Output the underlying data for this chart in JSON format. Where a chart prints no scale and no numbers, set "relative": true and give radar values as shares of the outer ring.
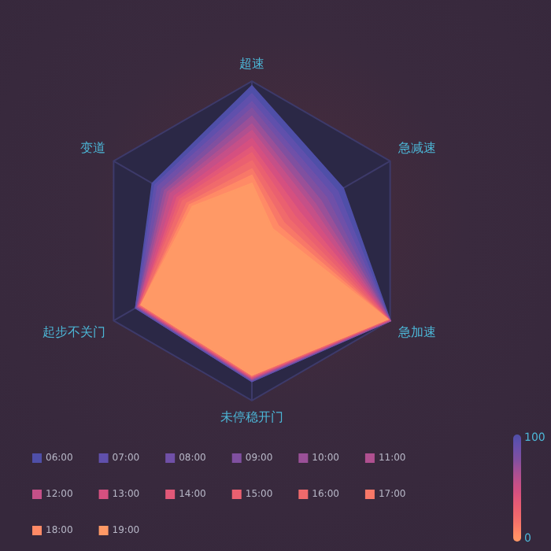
{
  "chart_data": {
    "type": "radar",
    "categories": [
      "超速",
      "急减速",
      "急加速",
      "未停稳开门",
      "起步不关门",
      "变道"
    ],
    "relative": true,
    "grid": true,
    "legend": "bottom",
    "annotations": [
      "100",
      "0"
    ],
    "series": [
      {
        "name": "06:00",
        "color": "#4f4fa8",
        "values": [
          0.97,
          0.66,
          1,
          0.88,
          0.84,
          0.72
        ]
      },
      {
        "name": "07:00",
        "color": "#6050ac",
        "values": [
          0.92,
          0.62,
          1,
          0.88,
          0.84,
          0.7
        ]
      },
      {
        "name": "08:00",
        "color": "#7050a8",
        "values": [
          0.87,
          0.58,
          1,
          0.87,
          0.83,
          0.68
        ]
      },
      {
        "name": "09:00",
        "color": "#8050a0",
        "values": [
          0.83,
          0.54,
          1,
          0.87,
          0.83,
          0.65
        ]
      },
      {
        "name": "10:00",
        "color": "#9a5098",
        "values": [
          0.78,
          0.5,
          1,
          0.87,
          0.83,
          0.63
        ]
      },
      {
        "name": "11:00",
        "color": "#b05090",
        "values": [
          0.73,
          0.46,
          1,
          0.86,
          0.82,
          0.61
        ]
      },
      {
        "name": "12:00",
        "color": "#c55088",
        "values": [
          0.69,
          0.43,
          0.99,
          0.86,
          0.82,
          0.59
        ]
      },
      {
        "name": "13:00",
        "color": "#d55080",
        "values": [
          0.64,
          0.39,
          0.99,
          0.86,
          0.82,
          0.56
        ]
      },
      {
        "name": "14:00",
        "color": "#e25878",
        "values": [
          0.59,
          0.35,
          0.99,
          0.85,
          0.81,
          0.54
        ]
      },
      {
        "name": "15:00",
        "color": "#ea6070",
        "values": [
          0.55,
          0.31,
          0.99,
          0.85,
          0.81,
          0.52
        ]
      },
      {
        "name": "16:00",
        "color": "#f06a6c",
        "values": [
          0.5,
          0.27,
          0.98,
          0.85,
          0.81,
          0.5
        ]
      },
      {
        "name": "17:00",
        "color": "#f87868",
        "values": [
          0.45,
          0.23,
          0.98,
          0.84,
          0.8,
          0.47
        ]
      },
      {
        "name": "18:00",
        "color": "#ff8a66",
        "values": [
          0.41,
          0.19,
          0.98,
          0.84,
          0.8,
          0.45
        ]
      },
      {
        "name": "19:00",
        "color": "#ff9966",
        "values": [
          0.36,
          0.15,
          0.98,
          0.84,
          0.8,
          0.43
        ]
      }
    ]
  }
}
